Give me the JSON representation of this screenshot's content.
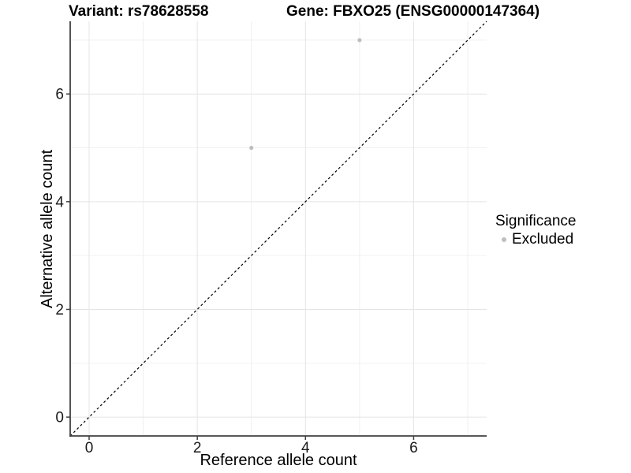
{
  "figure": {
    "title_left": "Variant: rs78628558",
    "title_right": "Gene: FBXO25 (ENSG00000147364)"
  },
  "chart_data": {
    "type": "scatter",
    "title": "Variant: rs78628558   |   Gene: FBXO25 (ENSG00000147364)",
    "xlabel": "Reference allele count",
    "ylabel": "Alternative allele count",
    "xlim": [
      -0.35,
      7.35
    ],
    "ylim": [
      -0.35,
      7.35
    ],
    "x_ticks": [
      0,
      2,
      4,
      6
    ],
    "y_ticks": [
      0,
      2,
      4,
      6
    ],
    "minor_gridlines": [
      1,
      3,
      5,
      7
    ],
    "grid": "major and minor, light gray on white background",
    "reference_line": {
      "kind": "identity y=x",
      "style": "dashed",
      "color": "#000000"
    },
    "series": [
      {
        "name": "Excluded",
        "color": "#bebebe",
        "marker": "circle",
        "points": [
          {
            "x": 3,
            "y": 5
          },
          {
            "x": 5,
            "y": 7
          }
        ]
      }
    ],
    "legend": {
      "title": "Significance",
      "position": "right-center",
      "items": [
        {
          "label": "Excluded",
          "color": "#bebebe",
          "marker": "circle"
        }
      ]
    },
    "style": {
      "major_grid_color": "#e4e4e4",
      "minor_grid_color": "#f0f0f0",
      "axis_line_color": "#404040",
      "tick_label_color": "#1a1a1a",
      "point_radius": 2.6
    }
  }
}
